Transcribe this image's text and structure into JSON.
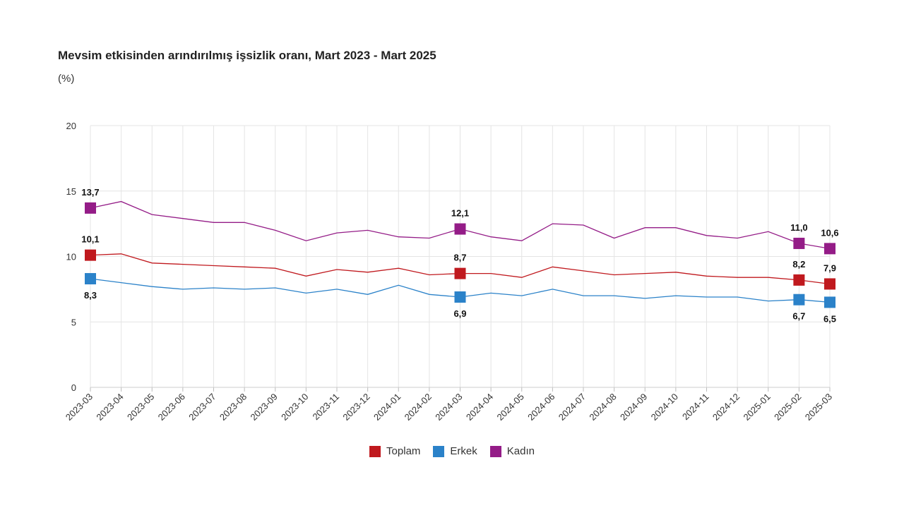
{
  "header": {
    "title": "Mevsim etkisinden arındırılmış işsizlik oranı, Mart 2023 - Mart 2025",
    "subtitle": "(%)"
  },
  "legend": {
    "items": [
      {
        "label": "Toplam",
        "color": "#c0191e"
      },
      {
        "label": "Erkek",
        "color": "#2b82c9"
      },
      {
        "label": "Kadın",
        "color": "#941c87"
      }
    ]
  },
  "chart_data": {
    "type": "line",
    "title": "Mevsim etkisinden arındırılmış işsizlik oranı, Mart 2023 - Mart 2025",
    "ylabel": "(%)",
    "ylim": [
      0,
      20
    ],
    "yticks": [
      "0",
      "5",
      "10",
      "15",
      "20"
    ],
    "grid": true,
    "legend_position": "bottom",
    "categories": [
      "2023-03",
      "2023-04",
      "2023-05",
      "2023-06",
      "2023-07",
      "2023-08",
      "2023-09",
      "2023-10",
      "2023-11",
      "2023-12",
      "2024-01",
      "2024-02",
      "2024-03",
      "2024-04",
      "2024-05",
      "2024-06",
      "2024-07",
      "2024-08",
      "2024-09",
      "2024-10",
      "2024-11",
      "2024-12",
      "2025-01",
      "2025-02",
      "2025-03"
    ],
    "series": [
      {
        "name": "Toplam",
        "color": "#c0191e",
        "values": [
          10.1,
          10.2,
          9.5,
          9.4,
          9.3,
          9.2,
          9.1,
          8.5,
          9.0,
          8.8,
          9.1,
          8.6,
          8.7,
          8.7,
          8.4,
          9.2,
          8.9,
          8.6,
          8.7,
          8.8,
          8.5,
          8.4,
          8.4,
          8.2,
          7.9
        ],
        "labels": [
          {
            "index": 0,
            "text": "10,1",
            "pos": "above"
          },
          {
            "index": 12,
            "text": "8,7",
            "pos": "above"
          },
          {
            "index": 23,
            "text": "8,2",
            "pos": "above"
          },
          {
            "index": 24,
            "text": "7,9",
            "pos": "above"
          }
        ]
      },
      {
        "name": "Erkek",
        "color": "#2b82c9",
        "values": [
          8.3,
          8.0,
          7.7,
          7.5,
          7.6,
          7.5,
          7.6,
          7.2,
          7.5,
          7.1,
          7.8,
          7.1,
          6.9,
          7.2,
          7.0,
          7.5,
          7.0,
          7.0,
          6.8,
          7.0,
          6.9,
          6.9,
          6.6,
          6.7,
          6.5
        ],
        "labels": [
          {
            "index": 0,
            "text": "8,3",
            "pos": "below"
          },
          {
            "index": 12,
            "text": "6,9",
            "pos": "below"
          },
          {
            "index": 23,
            "text": "6,7",
            "pos": "below"
          },
          {
            "index": 24,
            "text": "6,5",
            "pos": "below"
          }
        ]
      },
      {
        "name": "Kadın",
        "color": "#941c87",
        "values": [
          13.7,
          14.2,
          13.2,
          12.9,
          12.6,
          12.6,
          12.0,
          11.2,
          11.8,
          12.0,
          11.5,
          11.4,
          12.1,
          11.5,
          11.2,
          12.5,
          12.4,
          11.4,
          12.2,
          12.2,
          11.6,
          11.4,
          11.9,
          11.0,
          10.6
        ],
        "labels": [
          {
            "index": 0,
            "text": "13,7",
            "pos": "above"
          },
          {
            "index": 12,
            "text": "12,1",
            "pos": "above"
          },
          {
            "index": 23,
            "text": "11,0",
            "pos": "above"
          },
          {
            "index": 24,
            "text": "10,6",
            "pos": "above"
          }
        ]
      }
    ]
  }
}
